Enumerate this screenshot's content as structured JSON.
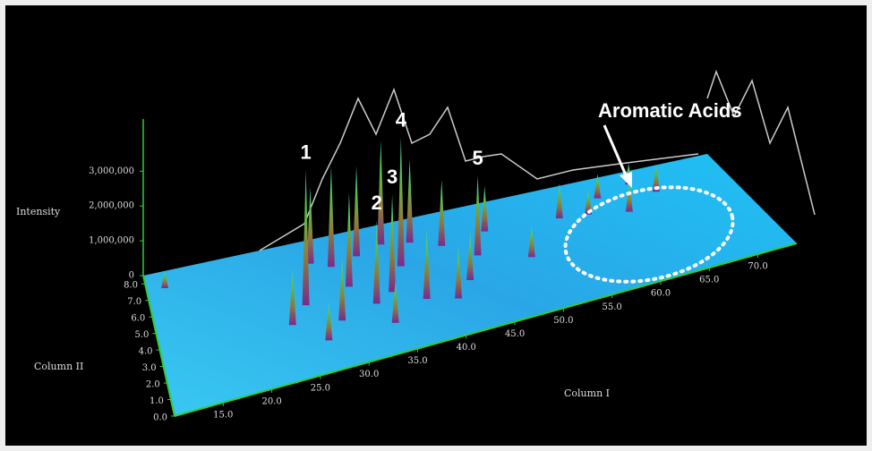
{
  "chart_data": {
    "type": "surface3d",
    "xlabel": "Column I",
    "ylabel": "Column II",
    "zlabel": "Intensity",
    "xlim": [
      10,
      74
    ],
    "ylim": [
      0,
      8.5
    ],
    "zlim": [
      0,
      4500000
    ],
    "xticks": [
      {
        "value": 15,
        "label": "15.0"
      },
      {
        "value": 20,
        "label": "20.0"
      },
      {
        "value": 25,
        "label": "25.0"
      },
      {
        "value": 30,
        "label": "30.0"
      },
      {
        "value": 35,
        "label": "35.0"
      },
      {
        "value": 40,
        "label": "40.0"
      },
      {
        "value": 45,
        "label": "45.0"
      },
      {
        "value": 50,
        "label": "50.0"
      },
      {
        "value": 55,
        "label": "55.0"
      },
      {
        "value": 60,
        "label": "60.0"
      },
      {
        "value": 65,
        "label": "65.0"
      },
      {
        "value": 70,
        "label": "70.0"
      }
    ],
    "yticks": [
      {
        "value": 0,
        "label": "0.0"
      },
      {
        "value": 1,
        "label": "1.0"
      },
      {
        "value": 2,
        "label": "2.0"
      },
      {
        "value": 3,
        "label": "3.0"
      },
      {
        "value": 4,
        "label": "4.0"
      },
      {
        "value": 5,
        "label": "5.0"
      },
      {
        "value": 6,
        "label": "6.0"
      },
      {
        "value": 7,
        "label": "7.0"
      },
      {
        "value": 8,
        "label": "8.0"
      }
    ],
    "zticks": [
      0,
      {
        "value": 1000000,
        "label": "1,000,000"
      },
      {
        "value": 2000000,
        "label": "2,000,000"
      },
      {
        "value": 3000000,
        "label": "3,000,000"
      }
    ],
    "peaks": {
      "x": [
        28,
        30,
        33,
        36,
        39,
        42,
        47,
        31,
        26,
        37,
        35,
        33,
        45,
        29,
        38,
        41,
        24,
        27,
        34,
        43,
        50,
        58,
        62,
        66,
        55,
        60,
        64,
        12
      ],
      "y": [
        7,
        6.5,
        6.8,
        7.2,
        6.9,
        6.2,
        6.5,
        5,
        4.5,
        5.5,
        4,
        3.5,
        5,
        3,
        3,
        2.5,
        3.5,
        2,
        2,
        3.5,
        4,
        6,
        5.5,
        6.5,
        6.2,
        7,
        7.5,
        7.5
      ],
      "z": [
        2200000,
        2900000,
        2600000,
        3000000,
        2400000,
        1900000,
        1300000,
        2700000,
        3900000,
        3700000,
        2800000,
        2400000,
        2300000,
        1800000,
        2000000,
        1500000,
        1600000,
        1100000,
        1200000,
        1400000,
        900000,
        700000,
        900000,
        800000,
        1000000,
        700000,
        600000,
        500000
      ]
    },
    "annotations": [
      {
        "text": "1",
        "x": 26,
        "y": 4.5
      },
      {
        "text": "2",
        "x": 33,
        "y": 3.5
      },
      {
        "text": "3",
        "x": 35,
        "y": 4
      },
      {
        "text": "4",
        "x": 37,
        "y": 5.5
      },
      {
        "text": "5",
        "x": 45,
        "y": 5
      },
      {
        "text": "Aromatic Acids"
      }
    ]
  }
}
